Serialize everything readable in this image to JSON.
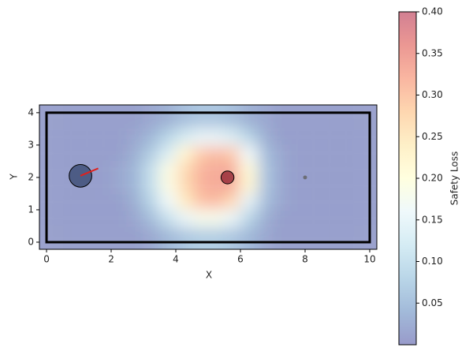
{
  "chart_data": {
    "type": "heatmap",
    "xlabel": "X",
    "ylabel": "Y",
    "colorbar_label": "Safety Loss",
    "xlim": [
      -0.22,
      10.22
    ],
    "ylim": [
      -0.22,
      4.24
    ],
    "xticks": [
      0,
      2,
      4,
      6,
      8,
      10
    ],
    "yticks": [
      0,
      1,
      2,
      3,
      4
    ],
    "zlim": [
      0,
      0.4
    ],
    "zticks": [
      {
        "value": 0.05,
        "label": "0.05"
      },
      {
        "value": 0.1,
        "label": "0.10"
      },
      {
        "value": 0.15,
        "label": "0.15"
      },
      {
        "value": 0.2,
        "label": "0.20"
      },
      {
        "value": 0.25,
        "label": "0.25"
      },
      {
        "value": 0.3,
        "label": "0.30"
      },
      {
        "value": 0.35,
        "label": "0.35"
      },
      {
        "value": 0.4,
        "label": "0.40"
      }
    ],
    "colorscale": [
      "#313695",
      "#4575b4",
      "#74add1",
      "#abd9e9",
      "#e0f3f8",
      "#ffffbf",
      "#fee090",
      "#fdae61",
      "#f46d43",
      "#d73027",
      "#a50026"
    ],
    "opacity": 0.5,
    "x": [
      0.25,
      0.75,
      1.25,
      1.75,
      2.25,
      2.75,
      3.25,
      3.75,
      4.25,
      4.75,
      5.25,
      5.75,
      6.25,
      6.75,
      7.25,
      7.75,
      8.25,
      8.75,
      9.25,
      9.75
    ],
    "y": [
      0.25,
      0.75,
      1.25,
      1.75,
      2.25,
      2.75,
      3.25,
      3.75
    ],
    "z": [
      [
        0.01,
        0.01,
        0.01,
        0.01,
        0.01,
        0.01,
        0.02,
        0.04,
        0.06,
        0.07,
        0.07,
        0.06,
        0.04,
        0.02,
        0.01,
        0.01,
        0.01,
        0.01,
        0.01,
        0.01
      ],
      [
        0.01,
        0.01,
        0.01,
        0.01,
        0.01,
        0.02,
        0.05,
        0.1,
        0.15,
        0.18,
        0.18,
        0.15,
        0.08,
        0.03,
        0.01,
        0.01,
        0.01,
        0.01,
        0.01,
        0.01
      ],
      [
        0.01,
        0.01,
        0.01,
        0.01,
        0.01,
        0.03,
        0.08,
        0.16,
        0.24,
        0.3,
        0.31,
        0.27,
        0.14,
        0.05,
        0.02,
        0.01,
        0.01,
        0.01,
        0.01,
        0.01
      ],
      [
        0.01,
        0.01,
        0.01,
        0.01,
        0.02,
        0.04,
        0.1,
        0.19,
        0.27,
        0.32,
        0.33,
        0.33,
        0.22,
        0.06,
        0.02,
        0.01,
        0.01,
        0.01,
        0.01,
        0.01
      ],
      [
        0.01,
        0.01,
        0.01,
        0.01,
        0.02,
        0.04,
        0.1,
        0.19,
        0.27,
        0.32,
        0.33,
        0.33,
        0.21,
        0.06,
        0.02,
        0.01,
        0.01,
        0.01,
        0.01,
        0.01
      ],
      [
        0.01,
        0.01,
        0.01,
        0.01,
        0.01,
        0.03,
        0.07,
        0.13,
        0.22,
        0.29,
        0.31,
        0.29,
        0.16,
        0.05,
        0.02,
        0.01,
        0.01,
        0.01,
        0.01,
        0.01
      ],
      [
        0.01,
        0.01,
        0.01,
        0.01,
        0.01,
        0.02,
        0.04,
        0.08,
        0.12,
        0.15,
        0.15,
        0.13,
        0.08,
        0.03,
        0.01,
        0.01,
        0.01,
        0.01,
        0.01,
        0.01
      ],
      [
        0.01,
        0.01,
        0.01,
        0.01,
        0.01,
        0.01,
        0.02,
        0.03,
        0.05,
        0.06,
        0.06,
        0.05,
        0.03,
        0.02,
        0.01,
        0.01,
        0.01,
        0.01,
        0.01,
        0.01
      ]
    ],
    "boundary": {
      "x": [
        0,
        10
      ],
      "y": [
        0,
        4
      ],
      "color": "#000000"
    },
    "agent": {
      "x": 1.05,
      "y": 2.05,
      "radius": 0.35,
      "color": "#34466e",
      "heading": [
        1.6,
        2.28
      ],
      "heading_color": "#e0201c"
    },
    "obstacle": {
      "x": 5.6,
      "y": 2.0,
      "radius": 0.2,
      "color": "#8c1c2c"
    },
    "goal": {
      "x": 8.0,
      "y": 2.0,
      "radius": 0.06,
      "color": "#606060"
    }
  }
}
